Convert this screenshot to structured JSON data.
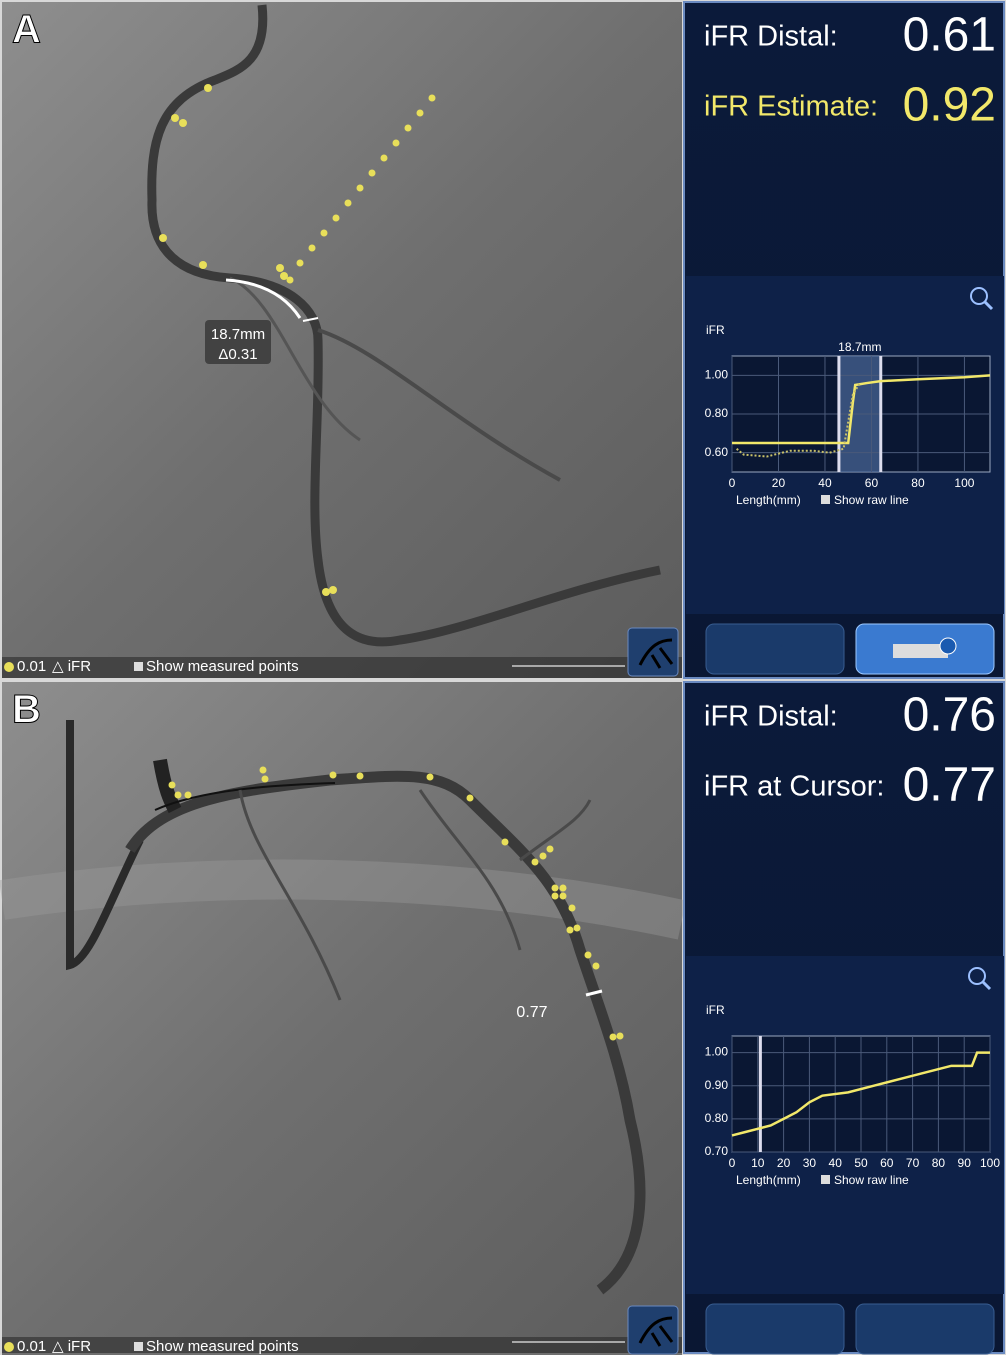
{
  "panels": [
    {
      "label": "A",
      "annotation": {
        "length": "18.7mm",
        "delta": "Δ0.31"
      },
      "legend": {
        "dot_value": "0.01",
        "delta_label": "△ iFR",
        "toggle": "Show measured points"
      },
      "metrics": [
        {
          "label": "iFR Distal:",
          "value": 0.61,
          "color": "#ffffff"
        },
        {
          "label": "iFR Estimate:",
          "value": 0.92,
          "color": "#f2e86a"
        }
      ],
      "chart": {
        "type": "line",
        "y_label": "iFR",
        "x_label": "Length(mm)",
        "raw_toggle": "Show raw line",
        "xlim": [
          0,
          111
        ],
        "ylim": [
          0.5,
          1.1
        ],
        "xticks": [
          0,
          20,
          40,
          60,
          80,
          100
        ],
        "yticks": [
          {
            "value": 0.6,
            "label": "0.60"
          },
          {
            "value": 0.8,
            "label": "0.80"
          },
          {
            "value": 1.0,
            "label": "1.00"
          }
        ],
        "grid": true,
        "highlight_range": [
          46,
          64
        ],
        "highlight_label": "18.7mm",
        "series": [
          {
            "color": "#f2e86a",
            "x": [
              0,
              50,
              52,
              53,
              58,
              64,
              80,
              100,
              111
            ],
            "values": [
              0.65,
              0.65,
              0.86,
              0.95,
              0.96,
              0.97,
              0.98,
              0.99,
              1.0
            ]
          },
          {
            "color": "#c9c16a",
            "dashed": true,
            "x": [
              2,
              5,
              15,
              25,
              35,
              42,
              48,
              52,
              55
            ],
            "values": [
              0.62,
              0.59,
              0.58,
              0.61,
              0.61,
              0.6,
              0.62,
              0.9,
              0.96
            ]
          }
        ]
      }
    },
    {
      "label": "B",
      "annotation": {
        "cursor_value": "0.77"
      },
      "legend": {
        "dot_value": "0.01",
        "delta_label": "△ iFR",
        "toggle": "Show measured points"
      },
      "metrics": [
        {
          "label": "iFR Distal:",
          "value": 0.76,
          "color": "#ffffff"
        },
        {
          "label": "iFR at Cursor:",
          "value": 0.77,
          "color": "#ffffff"
        }
      ],
      "chart": {
        "type": "line",
        "y_label": "iFR",
        "x_label": "Length(mm)",
        "raw_toggle": "Show raw line",
        "xlim": [
          0,
          100
        ],
        "ylim": [
          0.7,
          1.05
        ],
        "xticks": [
          0,
          10,
          20,
          30,
          40,
          50,
          60,
          70,
          80,
          90,
          100
        ],
        "yticks": [
          {
            "value": 0.7,
            "label": "0.70"
          },
          {
            "value": 0.8,
            "label": "0.80"
          },
          {
            "value": 0.9,
            "label": "0.90"
          },
          {
            "value": 1.0,
            "label": "1.00"
          }
        ],
        "grid": true,
        "cursor_x": 11,
        "series": [
          {
            "color": "#f2e86a",
            "x": [
              0,
              5,
              10,
              15,
              20,
              25,
              30,
              35,
              45,
              55,
              65,
              75,
              85,
              93,
              95,
              100
            ],
            "values": [
              0.75,
              0.76,
              0.77,
              0.78,
              0.8,
              0.82,
              0.85,
              0.87,
              0.88,
              0.9,
              0.92,
              0.94,
              0.96,
              0.96,
              1.0,
              1.0
            ]
          }
        ]
      }
    }
  ]
}
